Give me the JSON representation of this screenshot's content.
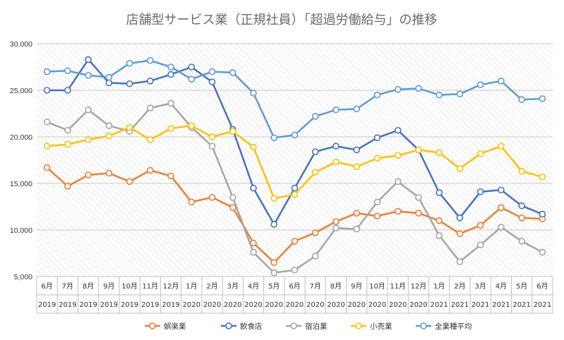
{
  "chart_data": {
    "type": "line",
    "title": "店舗型サービス業（正規社員）「超過労働給与」の推移",
    "xlabel": "",
    "ylabel": "",
    "ylim": [
      5000,
      30000
    ],
    "yticks": [
      "5,000",
      "10,000",
      "15,000",
      "20,000",
      "25,000",
      "30,000"
    ],
    "ytick_values": [
      5000,
      10000,
      15000,
      20000,
      25000,
      30000
    ],
    "months": [
      "6月",
      "7月",
      "8月",
      "9月",
      "10月",
      "11月",
      "12月",
      "1月",
      "2月",
      "3月",
      "4月",
      "5月",
      "6月",
      "7月",
      "8月",
      "9月",
      "10月",
      "11月",
      "12月",
      "1月",
      "2月",
      "3月",
      "4月",
      "5月",
      "6月"
    ],
    "years": [
      "2019",
      "2019",
      "2019",
      "2019",
      "2019",
      "2019",
      "2019",
      "2020",
      "2020",
      "2020",
      "2020",
      "2020",
      "2020",
      "2020",
      "2020",
      "2020",
      "2020",
      "2020",
      "2020",
      "2021",
      "2021",
      "2021",
      "2021",
      "2021",
      "2021"
    ],
    "grid": true,
    "legend_position": "bottom",
    "series": [
      {
        "name": "娯楽業",
        "color": "#ED7D31",
        "values": [
          16700,
          14700,
          15900,
          16100,
          15200,
          16400,
          15800,
          13000,
          13500,
          12400,
          8600,
          6500,
          8800,
          9700,
          10900,
          11800,
          11500,
          12000,
          11800,
          11000,
          9600,
          10500,
          12400,
          11300,
          11200
        ]
      },
      {
        "name": "飲食店",
        "color": "#4472C4",
        "values": [
          25000,
          25000,
          28300,
          25800,
          25700,
          26000,
          26700,
          27500,
          25900,
          20800,
          14500,
          10600,
          14500,
          18400,
          19000,
          18600,
          19900,
          20700,
          18600,
          14000,
          11300,
          14100,
          14300,
          12600,
          11700
        ]
      },
      {
        "name": "宿泊業",
        "color": "#A5A5A5",
        "values": [
          21600,
          20700,
          22900,
          21200,
          20600,
          23100,
          23600,
          21000,
          19000,
          13500,
          7600,
          5400,
          5700,
          7200,
          10200,
          10100,
          13000,
          15200,
          13500,
          9400,
          6600,
          8400,
          10300,
          8800,
          7600
        ]
      },
      {
        "name": "小売業",
        "color": "#FFC000",
        "values": [
          19000,
          19200,
          19700,
          20100,
          21000,
          19700,
          20900,
          21200,
          20000,
          20600,
          18900,
          13400,
          13800,
          16200,
          17300,
          16800,
          17700,
          18000,
          18600,
          18300,
          16600,
          18200,
          19000,
          16300,
          15700
        ]
      },
      {
        "name": "全業種平均",
        "color": "#5B9BD5",
        "values": [
          27000,
          27100,
          26600,
          26400,
          27900,
          28200,
          27500,
          26200,
          27000,
          26900,
          24700,
          19900,
          20200,
          22200,
          22900,
          23000,
          24500,
          25100,
          25200,
          24500,
          24600,
          25600,
          26000,
          24000,
          24100
        ]
      }
    ]
  }
}
